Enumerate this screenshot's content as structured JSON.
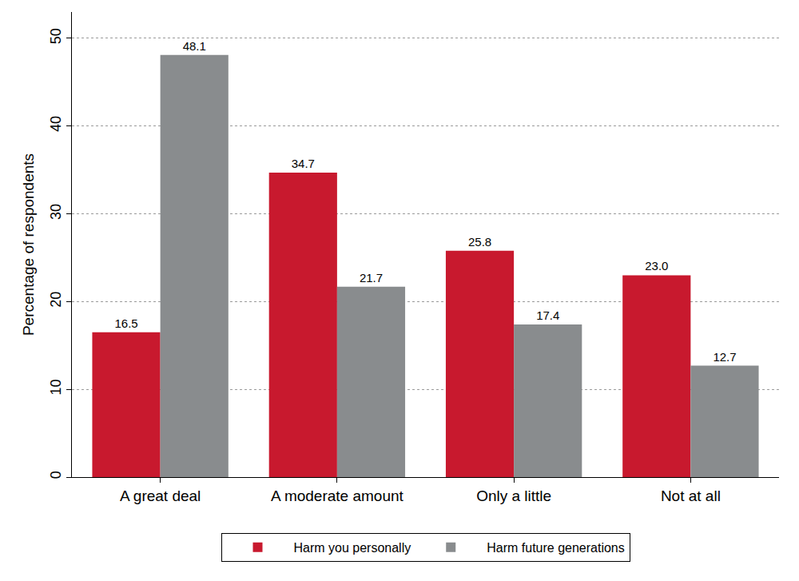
{
  "chart_data": {
    "type": "bar",
    "y_label": "Percentage of respondents",
    "categories": [
      "A great deal",
      "A moderate amount",
      "Only a little",
      "Not at all"
    ],
    "series": [
      {
        "name": "Harm you personally",
        "color": "#c8192e",
        "values": [
          16.5,
          34.7,
          25.8,
          23.0
        ],
        "value_labels": [
          "16.5",
          "34.7",
          "25.8",
          "23.0"
        ]
      },
      {
        "name": "Harm future generations",
        "color": "#898c8e",
        "values": [
          48.1,
          21.7,
          17.4,
          12.7
        ],
        "value_labels": [
          "48.1",
          "21.7",
          "17.4",
          "12.7"
        ]
      }
    ],
    "ylim": [
      0,
      53
    ],
    "yticks": [
      0,
      10,
      20,
      30,
      40,
      50
    ],
    "grid": true,
    "legend": "bottom",
    "data_labels": true
  }
}
